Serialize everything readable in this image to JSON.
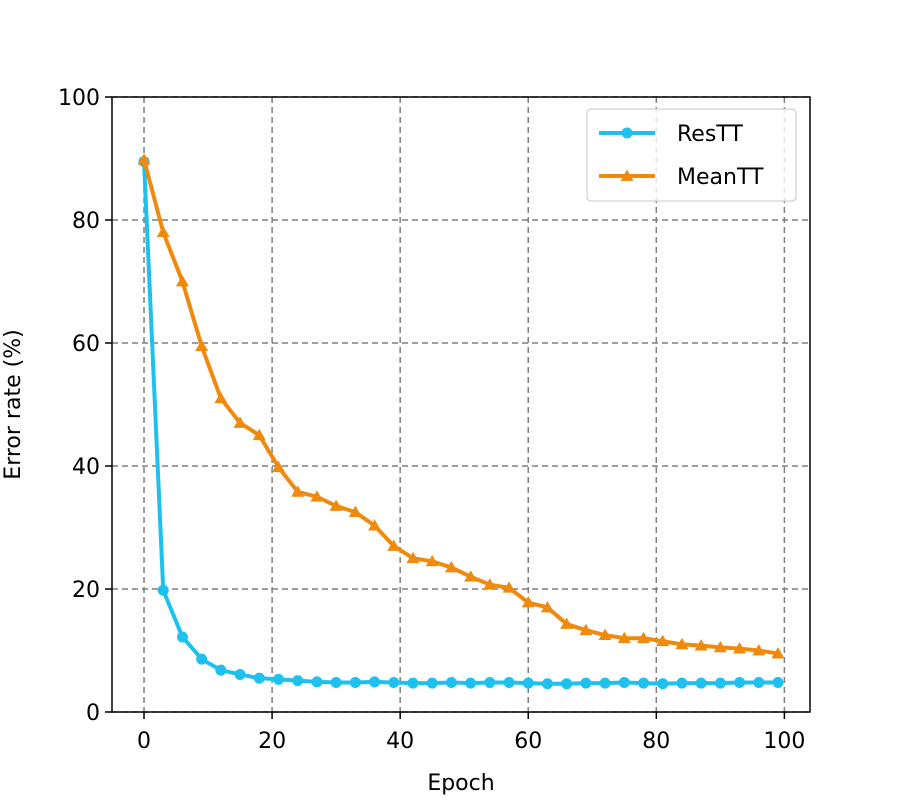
{
  "chart_data": {
    "type": "line",
    "title": "",
    "xlabel": "Epoch",
    "ylabel": "Error rate (%)",
    "xlim": [
      -5,
      104
    ],
    "ylim": [
      0,
      100
    ],
    "xticks": [
      0,
      20,
      40,
      60,
      80,
      100
    ],
    "yticks": [
      0,
      20,
      40,
      60,
      80,
      100
    ],
    "grid": true,
    "legend_position": "top-right",
    "x": [
      0,
      3,
      6,
      9,
      12,
      15,
      18,
      21,
      24,
      27,
      30,
      33,
      36,
      39,
      42,
      45,
      48,
      51,
      54,
      57,
      60,
      63,
      66,
      69,
      72,
      75,
      78,
      81,
      84,
      87,
      90,
      93,
      96,
      99
    ],
    "series": [
      {
        "name": "ResTT",
        "color": "#1ec1ed",
        "marker": "circle",
        "values": [
          89.5,
          19.8,
          12.2,
          8.6,
          6.8,
          6.1,
          5.5,
          5.3,
          5.1,
          4.9,
          4.8,
          4.8,
          4.9,
          4.8,
          4.7,
          4.7,
          4.8,
          4.7,
          4.8,
          4.8,
          4.7,
          4.6,
          4.6,
          4.7,
          4.7,
          4.8,
          4.7,
          4.6,
          4.7,
          4.7,
          4.7,
          4.8,
          4.8,
          4.8
        ]
      },
      {
        "name": "MeanTT",
        "color": "#f08a0d",
        "marker": "triangle",
        "values": [
          89.8,
          78.0,
          70.0,
          59.5,
          51.0,
          47.0,
          45.0,
          39.8,
          35.8,
          35.0,
          33.5,
          32.5,
          30.3,
          27.0,
          25.0,
          24.5,
          23.5,
          22.0,
          20.7,
          20.2,
          17.8,
          17.0,
          14.3,
          13.3,
          12.5,
          12.0,
          12.0,
          11.5,
          11.0,
          10.8,
          10.5,
          10.3,
          10.0,
          9.5
        ]
      }
    ]
  }
}
